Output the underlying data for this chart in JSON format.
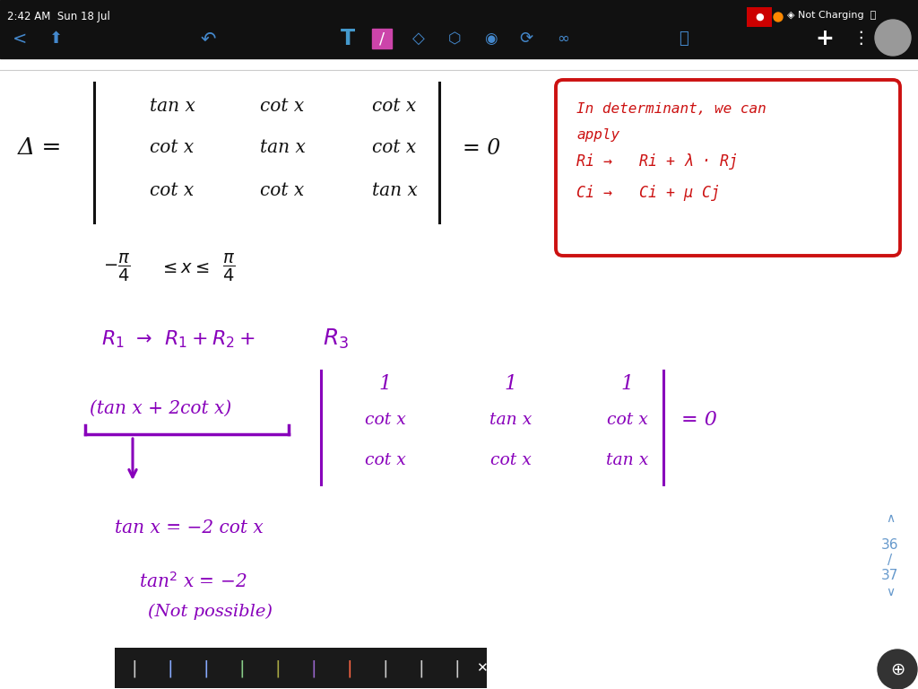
{
  "bg_color": "#ffffff",
  "toolbar_color": "#111111",
  "time_text": "2:42 AM  Sun 18 Jul",
  "matrix_row1": [
    "tan x",
    "cot x",
    "cot x"
  ],
  "matrix_row2": [
    "cot x",
    "tan x",
    "cot x"
  ],
  "matrix_row3": [
    "cot x",
    "cot x",
    "tan x"
  ],
  "red_box_line1": "In determinant, we can",
  "red_box_line2": "apply",
  "red_box_line3": "Ri →   Ri + λ · Rj",
  "red_box_line4": "Ci →   Ci + μ Cj",
  "range_left": "$-\\dfrac{\\pi}{4}$",
  "range_mid": "$\\leq x \\leq$",
  "range_right": "$\\dfrac{\\pi}{4}$",
  "row_op_line": "$R_1 \\rightarrow  R_1 + R_2 + R_3$",
  "factor_text": "(tan x + 2cot x)",
  "det2_row1": [
    "1",
    "1",
    "1"
  ],
  "det2_row2": [
    "cot x",
    "tan x",
    "cot x"
  ],
  "det2_row3": [
    "cot x",
    "cot x",
    "tan x"
  ],
  "result1": "tan x = −2 cot x",
  "result2_a": "tan",
  "result2_b": "2",
  "result2_c": " x = −2",
  "result3": "(Not possible)",
  "page_num": "36",
  "page_denom": "37",
  "purple": "#8800bb",
  "red": "#cc1111",
  "black": "#111111",
  "blue": "#6699cc",
  "white": "#ffffff"
}
